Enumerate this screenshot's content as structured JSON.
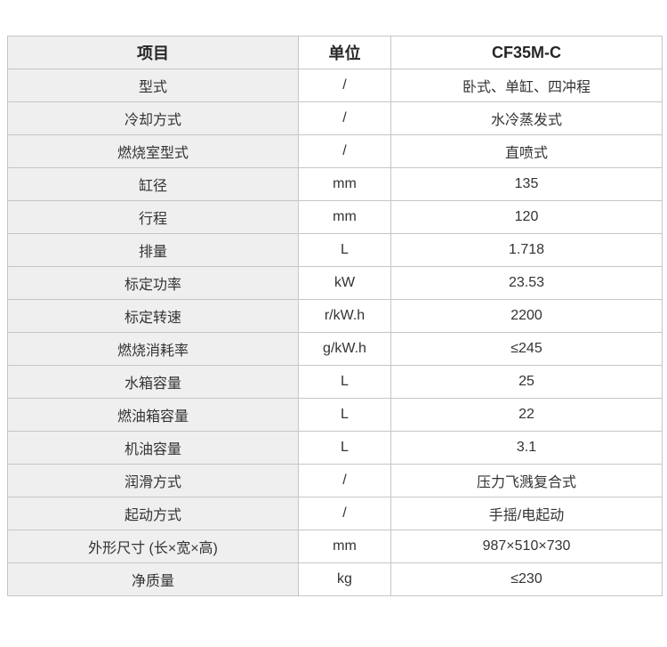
{
  "page": {
    "background": "#ffffff"
  },
  "table": {
    "headers": [
      "项目",
      "单位",
      "CF35M-C"
    ],
    "rows": [
      {
        "item": "型式",
        "unit": "/",
        "value": "卧式、单缸、四冲程"
      },
      {
        "item": "冷却方式",
        "unit": "/",
        "value": "水冷蒸发式"
      },
      {
        "item": "燃烧室型式",
        "unit": "/",
        "value": "直喷式"
      },
      {
        "item": "缸径",
        "unit": "mm",
        "value": "135"
      },
      {
        "item": "行程",
        "unit": "mm",
        "value": "120"
      },
      {
        "item": "排量",
        "unit": "L",
        "value": "1.718"
      },
      {
        "item": "标定功率",
        "unit": "kW",
        "value": "23.53"
      },
      {
        "item": "标定转速",
        "unit": "r/kW.h",
        "value": "2200"
      },
      {
        "item": "燃烧消耗率",
        "unit": "g/kW.h",
        "value": "≤245"
      },
      {
        "item": "水箱容量",
        "unit": "L",
        "value": "25"
      },
      {
        "item": "燃油箱容量",
        "unit": "L",
        "value": "22"
      },
      {
        "item": "机油容量",
        "unit": "L",
        "value": "3.1"
      },
      {
        "item": "润滑方式",
        "unit": "/",
        "value": "压力飞溅复合式"
      },
      {
        "item": "起动方式",
        "unit": "/",
        "value": "手摇/电起动"
      },
      {
        "item": "外形尺寸 (长×宽×高)",
        "unit": "mm",
        "value": "987×510×730"
      },
      {
        "item": "净质量",
        "unit": "kg",
        "value": "≤230"
      }
    ],
    "colors": {
      "item_column_bg": "#efefef",
      "border": "#c6c6c6",
      "text": "#333333",
      "header_text": "#262626",
      "value_bg": "#ffffff"
    }
  }
}
